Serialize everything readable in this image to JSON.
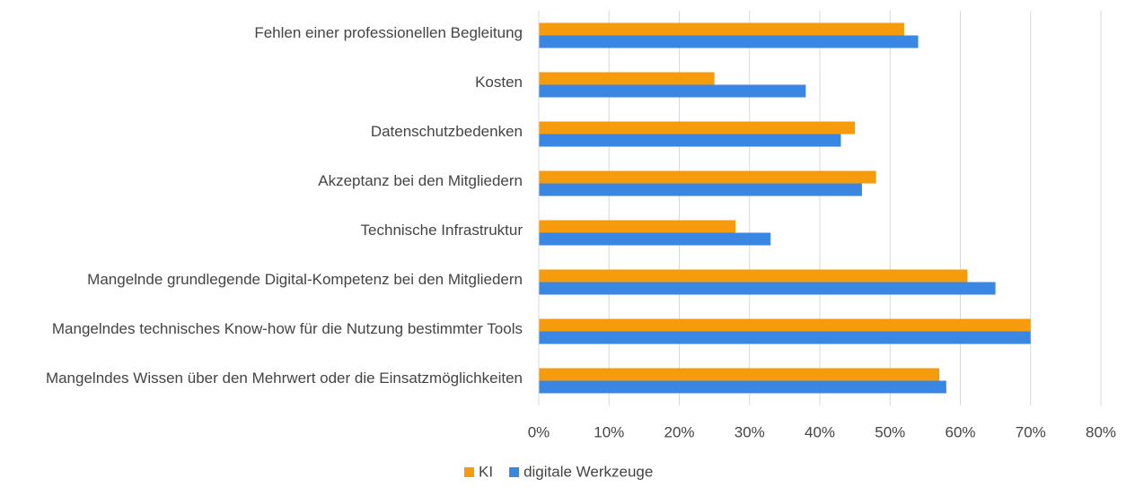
{
  "chart_data": {
    "type": "bar",
    "orientation": "horizontal",
    "categories": [
      "Fehlen einer professionellen Begleitung",
      "Kosten",
      "Datenschutzbedenken",
      "Akzeptanz bei den Mitgliedern",
      "Technische Infrastruktur",
      "Mangelnde grundlegende Digital-Kompetenz bei den Mitgliedern",
      "Mangelndes technisches Know-how für die Nutzung bestimmter Tools",
      "Mangelndes Wissen über den Mehrwert oder die Einsatzmöglichkeiten"
    ],
    "series": [
      {
        "name": "KI",
        "color": "#f59b0c",
        "values": [
          52,
          25,
          45,
          48,
          28,
          61,
          70,
          57
        ]
      },
      {
        "name": "digitale Werkzeuge",
        "color": "#3a86e3",
        "values": [
          54,
          38,
          43,
          46,
          33,
          65,
          70,
          58
        ]
      }
    ],
    "xlim": [
      0,
      80
    ],
    "xticks": [
      {
        "value": 0,
        "label": "0%"
      },
      {
        "value": 10,
        "label": "10%"
      },
      {
        "value": 20,
        "label": "20%"
      },
      {
        "value": 30,
        "label": "30%"
      },
      {
        "value": 40,
        "label": "40%"
      },
      {
        "value": 50,
        "label": "50%"
      },
      {
        "value": 60,
        "label": "60%"
      },
      {
        "value": 70,
        "label": "70%"
      },
      {
        "value": 80,
        "label": "80%"
      }
    ],
    "grid": true,
    "legend": "bottom"
  }
}
